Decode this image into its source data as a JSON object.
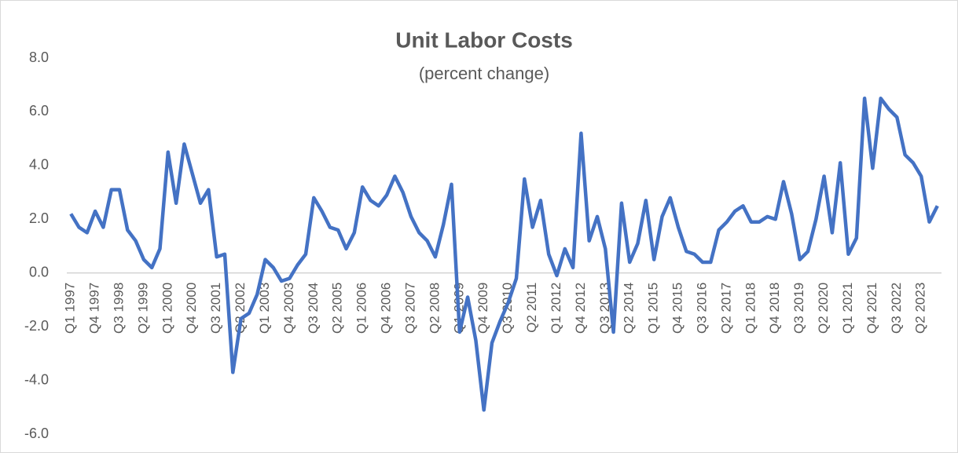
{
  "chart_data": {
    "type": "line",
    "title": "Unit Labor Costs",
    "subtitle": "(percent change)",
    "categories": [
      "Q1 1997",
      null,
      null,
      "Q4 1997",
      null,
      null,
      "Q3 1998",
      null,
      null,
      "Q2 1999",
      null,
      null,
      "Q1 2000",
      null,
      null,
      "Q4 2000",
      null,
      null,
      "Q3 2001",
      null,
      null,
      "Q2 2002",
      null,
      null,
      "Q1 2003",
      null,
      null,
      "Q4 2003",
      null,
      null,
      "Q3 2004",
      null,
      null,
      "Q2 2005",
      null,
      null,
      "Q1 2006",
      null,
      null,
      "Q4 2006",
      null,
      null,
      "Q3 2007",
      null,
      null,
      "Q2 2008",
      null,
      null,
      "Q1 2009",
      null,
      null,
      "Q4 2009",
      null,
      null,
      "Q3 2010",
      null,
      null,
      "Q2 2011",
      null,
      null,
      "Q1 2012",
      null,
      null,
      "Q4 2012",
      null,
      null,
      "Q3 2013",
      null,
      null,
      "Q2 2014",
      null,
      null,
      "Q1 2015",
      null,
      null,
      "Q4 2015",
      null,
      null,
      "Q3 2016",
      null,
      null,
      "Q2 2017",
      null,
      null,
      "Q1 2018",
      null,
      null,
      "Q4 2018",
      null,
      null,
      "Q3 2019",
      null,
      null,
      "Q2 2020",
      null,
      null,
      "Q1 2021",
      null,
      null,
      "Q4 2021",
      null,
      null,
      "Q3 2022",
      null,
      null,
      "Q2 2023",
      null,
      null
    ],
    "series": [
      {
        "color": "#4472c4",
        "values": [
          2.2,
          1.7,
          1.5,
          2.3,
          1.7,
          3.1,
          3.1,
          1.6,
          1.2,
          0.5,
          0.2,
          0.9,
          4.5,
          2.6,
          4.8,
          3.7,
          2.6,
          3.1,
          0.6,
          0.7,
          -3.7,
          -1.7,
          -1.5,
          -0.8,
          0.5,
          0.2,
          -0.3,
          -0.2,
          0.3,
          0.7,
          2.8,
          2.3,
          1.7,
          1.6,
          0.9,
          1.5,
          3.2,
          2.7,
          2.5,
          2.9,
          3.6,
          3.0,
          2.1,
          1.5,
          1.2,
          0.6,
          1.8,
          3.3,
          -2.2,
          -0.9,
          -2.5,
          -5.1,
          -2.6,
          -1.8,
          -1.1,
          -0.2,
          3.5,
          1.7,
          2.7,
          0.7,
          -0.1,
          0.9,
          0.2,
          5.2,
          1.2,
          2.1,
          0.9,
          -2.2,
          2.6,
          0.4,
          1.1,
          2.7,
          0.5,
          2.1,
          2.8,
          1.7,
          0.8,
          0.7,
          0.4,
          0.4,
          1.6,
          1.9,
          2.3,
          2.5,
          1.9,
          1.9,
          2.1,
          2.0,
          3.4,
          2.2,
          0.5,
          0.8,
          2.0,
          3.6,
          1.5,
          4.1,
          0.7,
          1.3,
          6.5,
          3.9,
          6.5,
          6.1,
          5.8,
          4.4,
          4.1,
          3.6,
          1.9,
          2.5
        ]
      }
    ],
    "ylim": [
      -6,
      8
    ],
    "yticks": [
      {
        "value": -6,
        "label": "-6.0"
      },
      {
        "value": -4,
        "label": "-4.0"
      },
      {
        "value": -2,
        "label": "-2.0"
      },
      {
        "value": 0,
        "label": "0.0"
      },
      {
        "value": 2,
        "label": "2.0"
      },
      {
        "value": 4,
        "label": "4.0"
      },
      {
        "value": 6,
        "label": "6.0"
      },
      {
        "value": 8,
        "label": "8.0"
      }
    ],
    "grid": false
  }
}
